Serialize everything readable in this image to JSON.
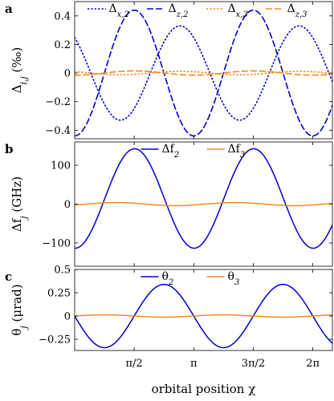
{
  "chart_data": [
    {
      "type": "line",
      "panel_label": "a",
      "ylabel": "Δi,j (‰)",
      "xlim": [
        0,
        6.8
      ],
      "ylim": [
        -0.46,
        0.5
      ],
      "yticks": [
        -0.4,
        -0.2,
        0,
        0.2,
        0.4
      ],
      "ytick_labels": [
        "−0.4",
        "−0.2",
        "0",
        "0.2",
        "0.4"
      ],
      "legend_position": "top",
      "series": [
        {
          "name": "Δx,2",
          "color": "#0000cc",
          "style": "dotted",
          "amplitude": 0.33,
          "phase": 1.0
        },
        {
          "name": "Δz,2",
          "color": "#0000cc",
          "style": "dashed",
          "amplitude": 0.44,
          "phase": 0.0
        },
        {
          "name": "Δx,3",
          "color": "#f28c1c",
          "style": "dotted",
          "amplitude": 0.012,
          "phase": 1.0
        },
        {
          "name": "Δz,3",
          "color": "#f28c1c",
          "style": "dashed",
          "amplitude": 0.015,
          "phase": 0.0
        }
      ]
    },
    {
      "type": "line",
      "panel_label": "b",
      "ylabel": "Δfj (GHz)",
      "xlim": [
        0,
        6.8
      ],
      "ylim": [
        -160,
        160
      ],
      "yticks": [
        -100,
        0,
        100
      ],
      "ytick_labels": [
        "−100",
        "0",
        "100"
      ],
      "legend_position": "top",
      "series": [
        {
          "name": "Δf2",
          "color": "#0000cc",
          "style": "solid",
          "amplitude": 143,
          "offset": -57,
          "phase": 0.0
        },
        {
          "name": "Δf3",
          "color": "#f28c1c",
          "style": "solid",
          "amplitude": 4,
          "offset": 0,
          "phase": 1.0
        }
      ]
    },
    {
      "type": "line",
      "panel_label": "c",
      "ylabel": "θj (μrad)",
      "xlabel": "orbital position χ",
      "xlim": [
        0,
        6.8
      ],
      "ylim": [
        -0.37,
        0.5
      ],
      "yticks": [
        -0.25,
        0,
        0.25,
        0.5
      ],
      "ytick_labels": [
        "−0.25",
        "0",
        "0.25",
        "0.5"
      ],
      "xticks": [
        1.5708,
        3.1416,
        4.7124,
        6.2832
      ],
      "xtick_labels": [
        "π/2",
        "π",
        "3π/2",
        "2π"
      ],
      "legend_position": "top",
      "series": [
        {
          "name": "θ2",
          "color": "#0000cc",
          "style": "solid",
          "amplitude": 0.34,
          "phase": 0.0
        },
        {
          "name": "θ3",
          "color": "#f28c1c",
          "style": "solid",
          "amplitude": 0.012,
          "phase": 0.0
        }
      ]
    }
  ]
}
